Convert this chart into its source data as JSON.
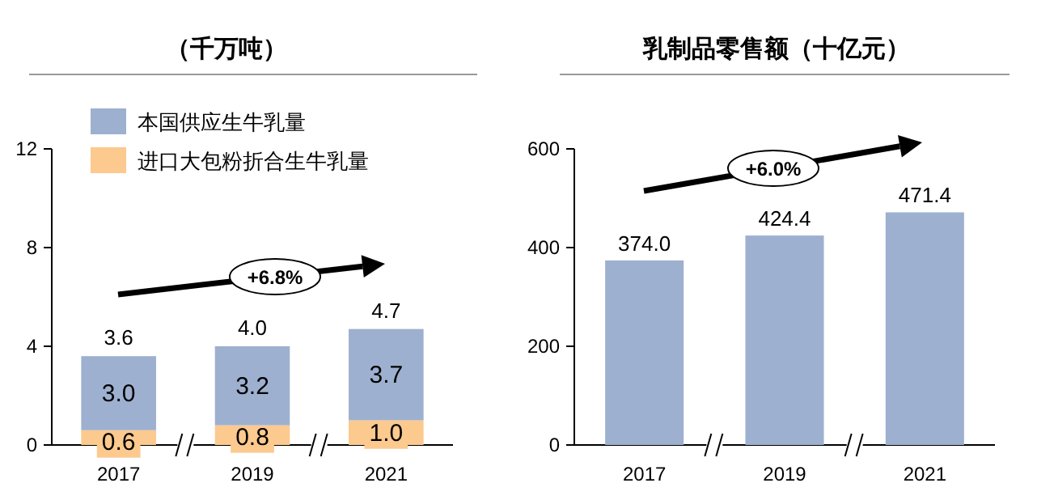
{
  "chart_data": [
    {
      "type": "bar",
      "title": "（千万吨）",
      "categories": [
        "2017",
        "2019",
        "2021"
      ],
      "stacked": true,
      "series": [
        {
          "name": "进口大包粉折合生牛乳量",
          "color": "#fcc98e",
          "values": [
            0.6,
            0.8,
            1.0
          ],
          "value_labels": [
            "0.6",
            "0.8",
            "1.0"
          ]
        },
        {
          "name": "本国供应生牛乳量",
          "color": "#9eb0cf",
          "values": [
            3.0,
            3.2,
            3.7
          ],
          "value_labels": [
            "3.0",
            "3.2",
            "3.7"
          ]
        }
      ],
      "totals": [
        "3.6",
        "4.0",
        "4.7"
      ],
      "ylim": [
        0,
        12
      ],
      "yticks": [
        0,
        4,
        8,
        12
      ],
      "legend": "top left",
      "annotations": [
        "+6.8%"
      ]
    },
    {
      "type": "bar",
      "title": "乳制品零售额（十亿元）",
      "categories": [
        "2017",
        "2019",
        "2021"
      ],
      "series": [
        {
          "color": "#9eb0cf",
          "values": [
            374.0,
            424.4,
            471.4
          ],
          "value_labels": [
            "374.0",
            "424.4",
            "471.4"
          ]
        }
      ],
      "ylim": [
        0,
        600
      ],
      "yticks": [
        0,
        200,
        400,
        600
      ],
      "annotations": [
        "+6.0%"
      ]
    }
  ]
}
